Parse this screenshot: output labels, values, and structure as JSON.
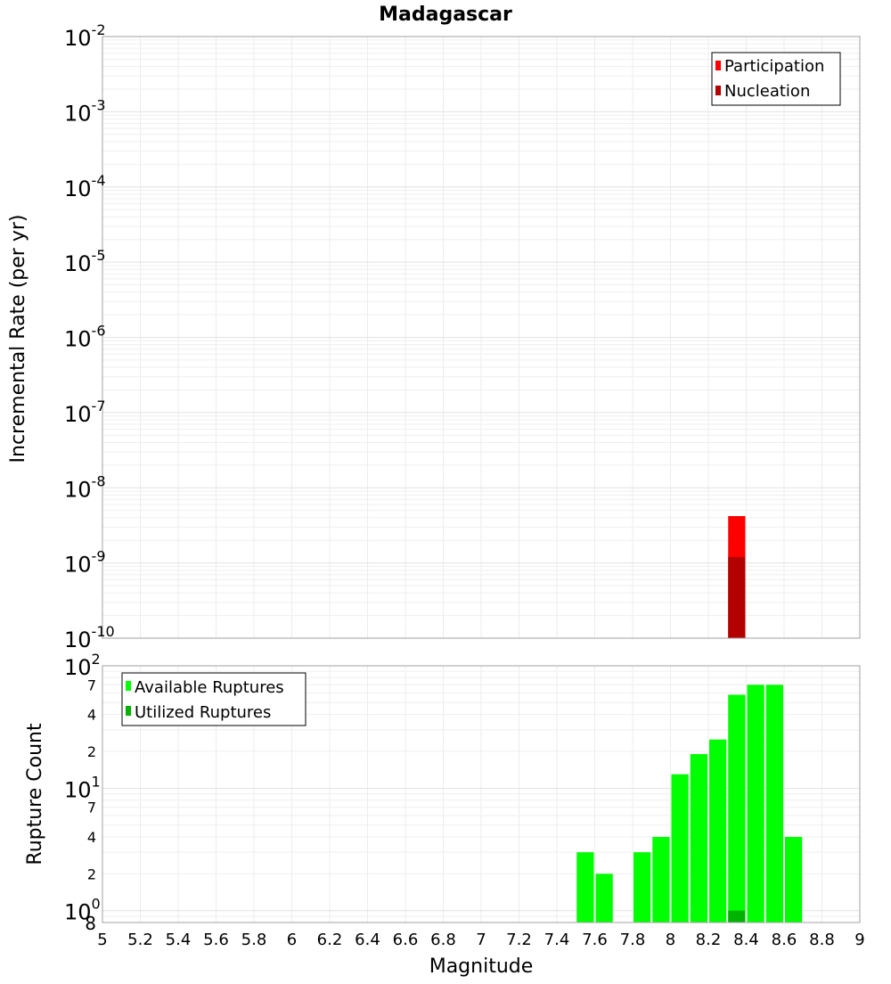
{
  "chart_data": [
    {
      "type": "bar",
      "title": "Madagascar",
      "xlabel": "",
      "ylabel": "Incremental Rate (per yr)",
      "yscale": "log",
      "xlim": [
        5,
        9
      ],
      "ylim": [
        1e-10,
        0.01
      ],
      "y_tick_labels": [
        {
          "base": "10",
          "exp": "-2"
        },
        {
          "base": "10",
          "exp": "-3"
        },
        {
          "base": "10",
          "exp": "-4"
        },
        {
          "base": "10",
          "exp": "-5"
        },
        {
          "base": "10",
          "exp": "-6"
        },
        {
          "base": "10",
          "exp": "-7"
        },
        {
          "base": "10",
          "exp": "-8"
        },
        {
          "base": "10",
          "exp": "-9"
        },
        {
          "base": "10",
          "exp": "-10"
        }
      ],
      "grid": true,
      "legend_position": "top-right",
      "bar_width": 0.1,
      "series": [
        {
          "name": "Participation",
          "color": "#ff0000",
          "points": [
            {
              "x": 8.35,
              "y": 4.2e-09
            }
          ]
        },
        {
          "name": "Nucleation",
          "color": "#b30000",
          "points": [
            {
              "x": 8.35,
              "y": 1.2e-09
            }
          ]
        }
      ]
    },
    {
      "type": "bar",
      "title": "",
      "xlabel": "Magnitude",
      "ylabel": "Rupture Count",
      "yscale": "log",
      "xlim": [
        5,
        9
      ],
      "ylim": [
        0.8,
        100
      ],
      "x_ticks": [
        "5",
        "5.2",
        "5.4",
        "5.6",
        "5.8",
        "6",
        "6.2",
        "6.4",
        "6.6",
        "6.8",
        "7",
        "7.2",
        "7.4",
        "7.6",
        "7.8",
        "8",
        "8.2",
        "8.4",
        "8.6",
        "8.8",
        "9"
      ],
      "grid": true,
      "legend_position": "top-left",
      "bar_width": 0.1,
      "series": [
        {
          "name": "Available Ruptures",
          "color": "#00ff00",
          "points": [
            {
              "x": 7.55,
              "y": 3
            },
            {
              "x": 7.65,
              "y": 2
            },
            {
              "x": 7.85,
              "y": 3
            },
            {
              "x": 7.95,
              "y": 4
            },
            {
              "x": 8.05,
              "y": 13
            },
            {
              "x": 8.15,
              "y": 19
            },
            {
              "x": 8.25,
              "y": 25
            },
            {
              "x": 8.35,
              "y": 58
            },
            {
              "x": 8.45,
              "y": 70
            },
            {
              "x": 8.55,
              "y": 70
            },
            {
              "x": 8.65,
              "y": 4
            }
          ]
        },
        {
          "name": "Utilized Ruptures",
          "color": "#00b300",
          "points": [
            {
              "x": 8.35,
              "y": 1
            }
          ]
        }
      ]
    }
  ],
  "bottom_y_axis": {
    "decades": [
      {
        "base": "10",
        "exp": "2"
      },
      {
        "base": "10",
        "exp": "1"
      },
      {
        "base": "10",
        "exp": "0"
      }
    ],
    "minor_labels": [
      {
        "label": "7",
        "value": 70
      },
      {
        "label": "4",
        "value": 40
      },
      {
        "label": "2",
        "value": 20
      },
      {
        "label": "7",
        "value": 7
      },
      {
        "label": "4",
        "value": 4
      },
      {
        "label": "2",
        "value": 2
      },
      {
        "label": "8",
        "value": 0.8
      }
    ]
  }
}
